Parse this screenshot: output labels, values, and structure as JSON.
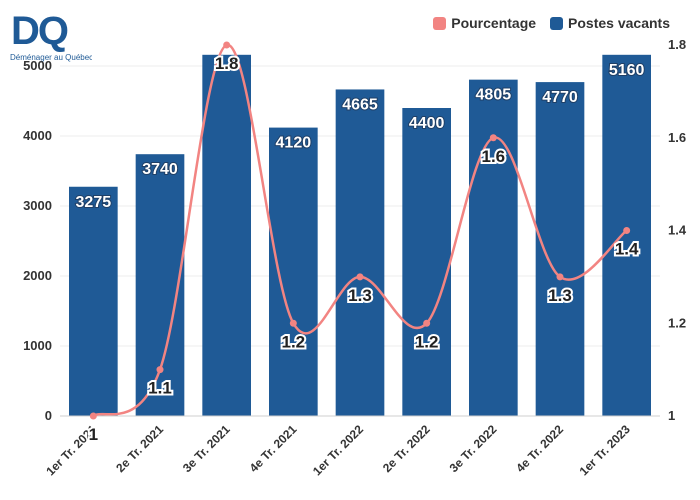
{
  "logo": {
    "letters": "DQ",
    "tagline": "Déménager au Québec"
  },
  "legend": [
    {
      "label": "Pourcentage",
      "color": "#f28482"
    },
    {
      "label": "Postes vacants",
      "color": "#1f5a96"
    }
  ],
  "chart_data": {
    "type": "bar",
    "categories": [
      "1er Tr. 2021",
      "2e Tr. 2021",
      "3e Tr. 2021",
      "4e Tr. 2021",
      "1er Tr. 2022",
      "2e Tr. 2022",
      "3e Tr. 2022",
      "4e Tr. 2022",
      "1er Tr. 2023"
    ],
    "series": [
      {
        "name": "Postes vacants",
        "type": "bar",
        "axis": "left",
        "color": "#1f5a96",
        "values": [
          3275,
          3740,
          5160,
          4120,
          4665,
          4400,
          4805,
          4770,
          5160
        ],
        "labels": [
          "3275",
          "3740",
          "",
          "4120",
          "4665",
          "4400",
          "4805",
          "4770",
          "5160"
        ]
      },
      {
        "name": "Pourcentage",
        "type": "line",
        "axis": "right",
        "color": "#f28482",
        "values": [
          1,
          1.1,
          1.8,
          1.2,
          1.3,
          1.2,
          1.6,
          1.3,
          1.4
        ],
        "labels": [
          "1",
          "1.1",
          "1.8",
          "1.2",
          "1.3",
          "1.2",
          "1.6",
          "1.3",
          "1.4"
        ]
      }
    ],
    "ylim_left": [
      0,
      5300
    ],
    "yticks_left": [
      0,
      1000,
      2000,
      3000,
      4000,
      5000
    ],
    "ylim_right": [
      1,
      1.8
    ],
    "yticks_right": [
      "1",
      "1.2",
      "1.4",
      "1.6",
      "1.8"
    ],
    "grid": true,
    "legend_position": "top-right"
  }
}
